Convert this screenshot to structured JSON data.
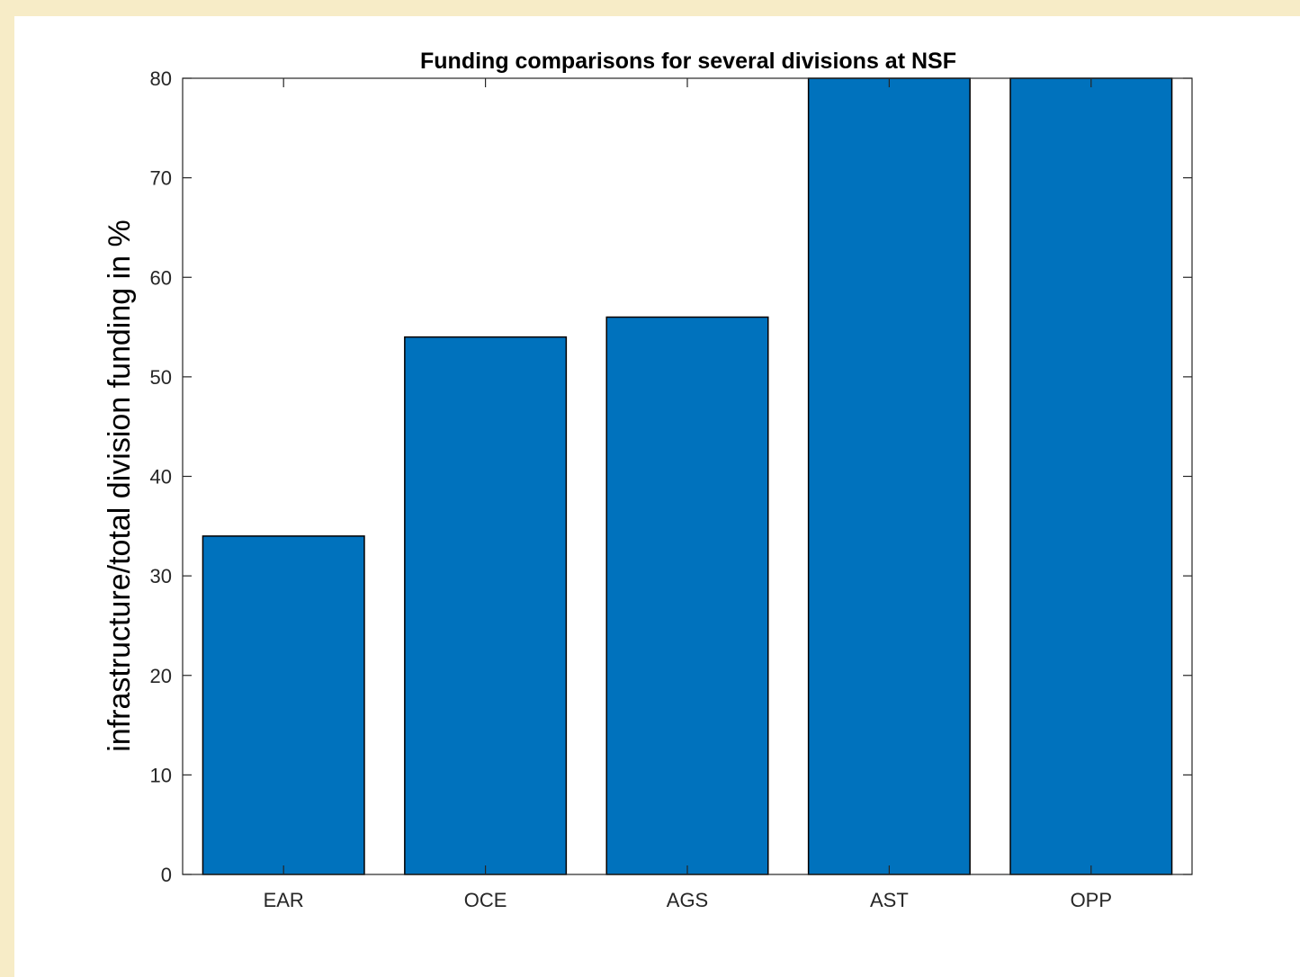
{
  "chart_data": {
    "type": "bar",
    "title": "Funding comparisons for several divisions at NSF",
    "xlabel": "",
    "ylabel": "infrastructure/total division funding in %",
    "categories": [
      "EAR",
      "OCE",
      "AGS",
      "AST",
      "OPP"
    ],
    "values": [
      34,
      54,
      56,
      80,
      80
    ],
    "ylim": [
      0,
      80
    ],
    "yticks": [
      0,
      10,
      20,
      30,
      40,
      50,
      60,
      70,
      80
    ],
    "grid": false,
    "bar_color": "#0072bd"
  }
}
